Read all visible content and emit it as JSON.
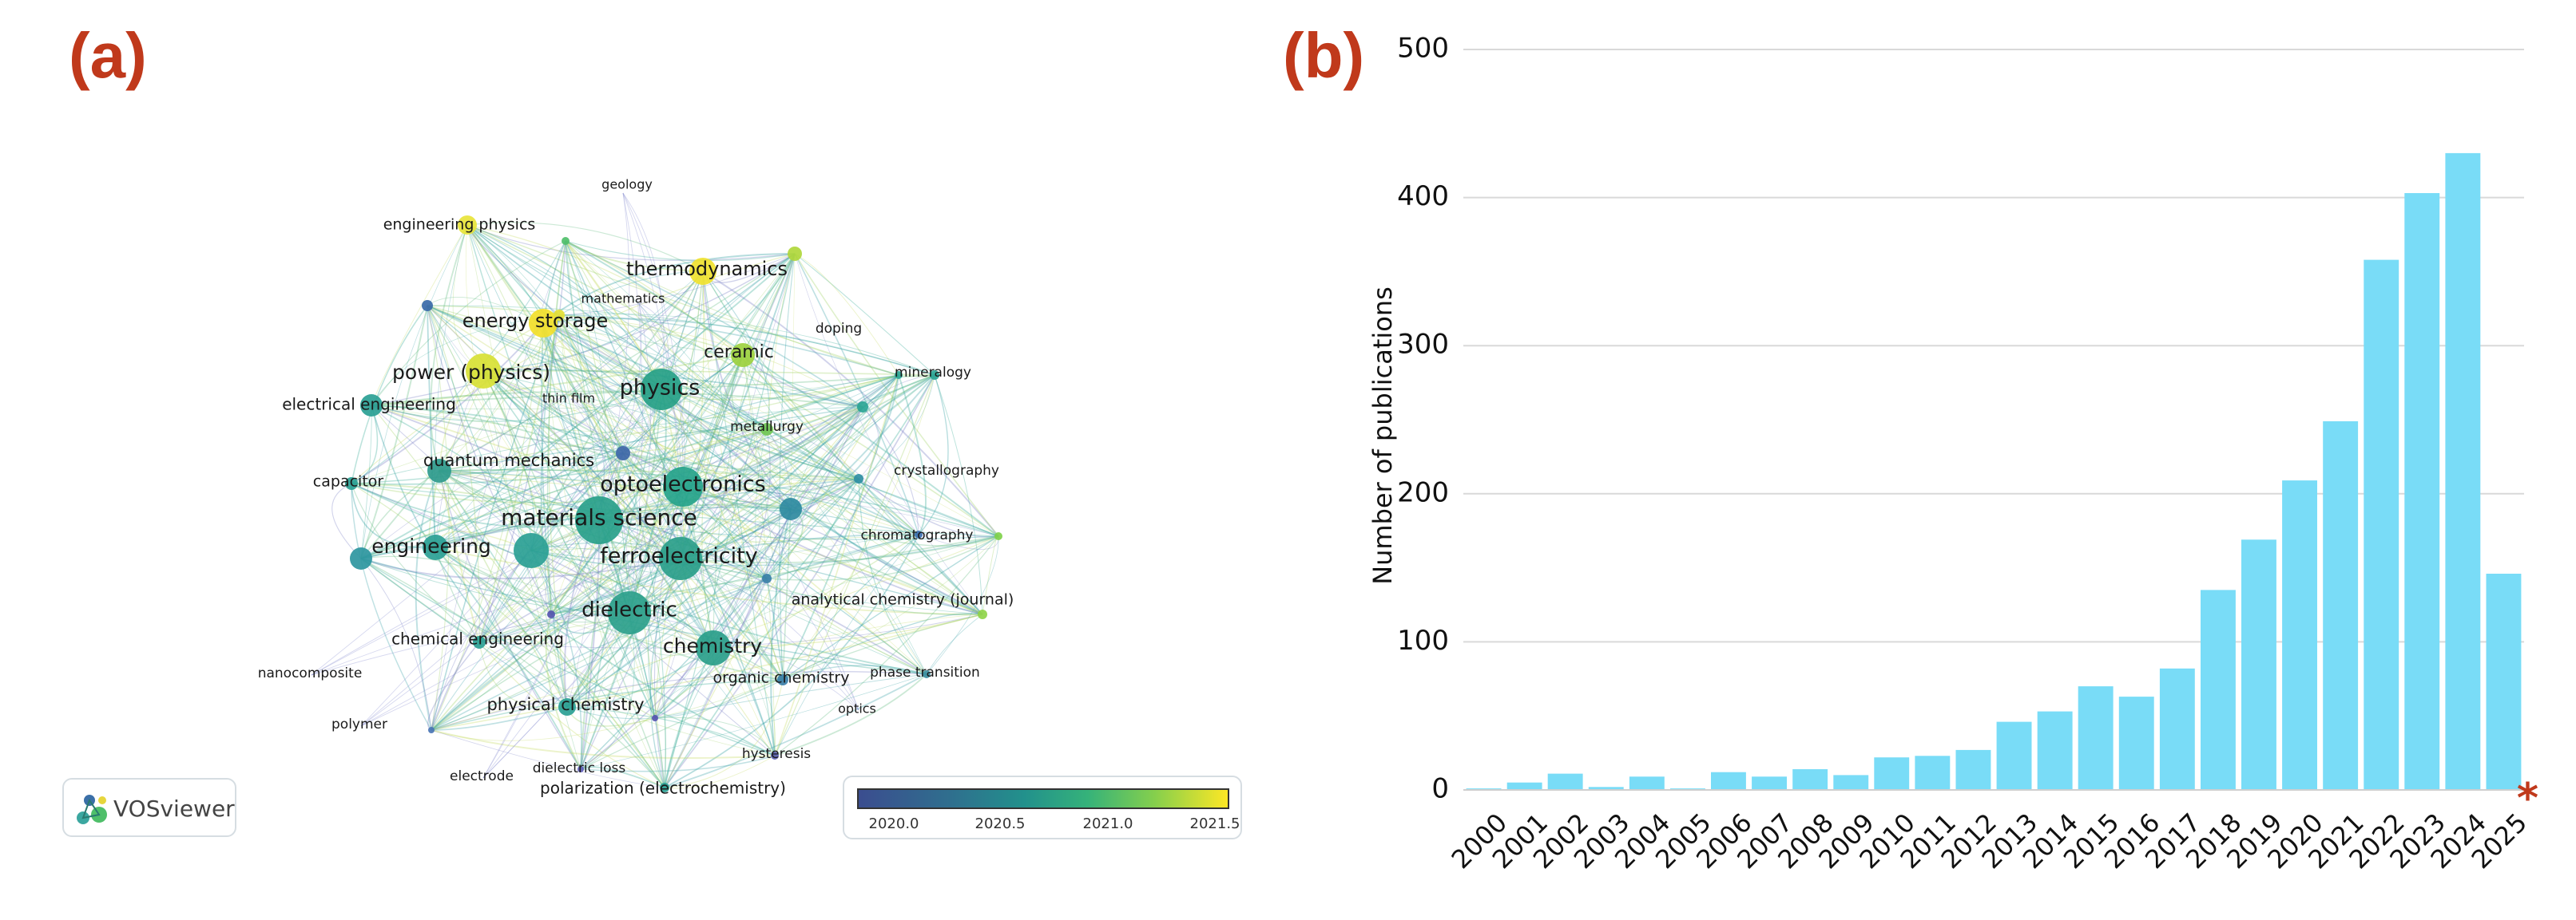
{
  "panels": {
    "a": "(a)",
    "b": "(b)"
  },
  "network": {
    "logo_text": "VOSviewer",
    "keywords": [
      "geology",
      "engineering physics",
      "thermodynamics",
      "mathematics",
      "doping",
      "energy storage",
      "ceramic",
      "power (physics)",
      "physics",
      "mineralogy",
      "electrical engineering",
      "thin film",
      "metallurgy",
      "quantum mechanics",
      "crystallography",
      "capacitor",
      "optoelectronics",
      "materials science",
      "chromatography",
      "engineering",
      "ferroelectricity",
      "analytical chemistry (journal)",
      "dielectric",
      "chemical engineering",
      "chemistry",
      "nanocomposite",
      "organic chemistry",
      "phase transition",
      "physical chemistry",
      "optics",
      "polymer",
      "hysteresis",
      "dielectric loss",
      "electrode",
      "polarization (electrochemistry)"
    ],
    "colorbar": {
      "ticks": [
        "2020.0",
        "2020.5",
        "2021.0",
        "2021.5"
      ],
      "min": 2019.85,
      "max": 2021.65
    }
  },
  "chart_data": {
    "type": "bar",
    "categories": [
      "2000",
      "2001",
      "2002",
      "2003",
      "2004",
      "2005",
      "2006",
      "2007",
      "2008",
      "2009",
      "2010",
      "2011",
      "2012",
      "2013",
      "2014",
      "2015",
      "2016",
      "2017",
      "2018",
      "2019",
      "2020",
      "2021",
      "2022",
      "2023",
      "2024",
      "2025"
    ],
    "values": [
      1,
      5,
      11,
      2,
      9,
      1,
      12,
      9,
      14,
      10,
      22,
      23,
      27,
      46,
      53,
      70,
      63,
      82,
      135,
      169,
      209,
      249,
      358,
      403,
      430,
      146
    ],
    "ylabel": "Number of publications",
    "xlabel": "",
    "ylim": [
      0,
      500
    ],
    "yticks": [
      0,
      100,
      200,
      300,
      400,
      500
    ],
    "grid": true,
    "bar_color": "#79dcf7",
    "annotation": "*",
    "annotation_color": "#c0391b"
  }
}
